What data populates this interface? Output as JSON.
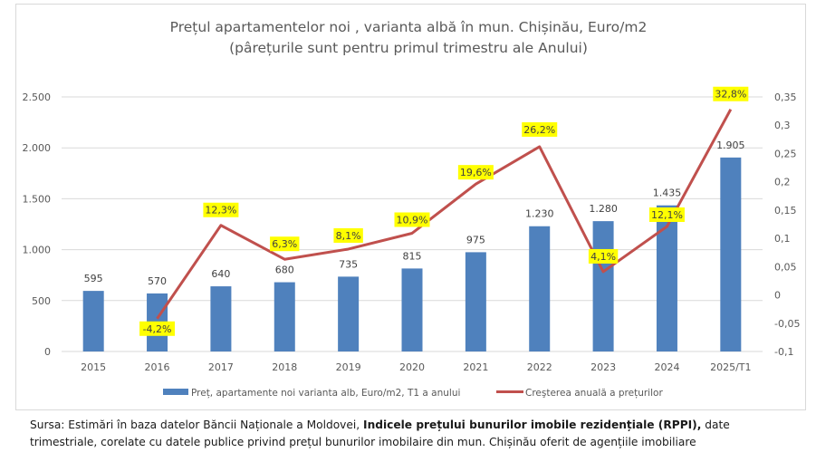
{
  "chart_data": {
    "type": "bar+line",
    "title": "Prețul apartamentelor noi , varianta albă în mun. Chișinău, Euro/m2",
    "subtitle": "(pârețurile sunt pentru primul trimestru ale Anului)",
    "categories": [
      "2015",
      "2016",
      "2017",
      "2018",
      "2019",
      "2020",
      "2021",
      "2022",
      "2023",
      "2024",
      "2025/T1"
    ],
    "series": [
      {
        "name": "Preț, apartamente noi varianta alb, Euro/m2, T1 a anului",
        "type": "bar",
        "axis": "left",
        "color": "#4f81bd",
        "values": [
          595,
          570,
          640,
          680,
          735,
          815,
          975,
          1230,
          1280,
          1435,
          1905
        ],
        "labels": [
          "595",
          "570",
          "640",
          "680",
          "735",
          "815",
          "975",
          "1.230",
          "1.280",
          "1.435",
          "1.905"
        ]
      },
      {
        "name": "Creşterea anuală a prețurilor",
        "type": "line",
        "axis": "right",
        "color": "#c0504d",
        "values": [
          null,
          -0.042,
          0.123,
          0.063,
          0.081,
          0.109,
          0.196,
          0.262,
          0.041,
          0.121,
          0.328
        ],
        "labels": [
          null,
          "-4,2%",
          "12,3%",
          "6,3%",
          "8,1%",
          "10,9%",
          "19,6%",
          "26,2%",
          "4,1%",
          "12,1%",
          "32,8%"
        ]
      }
    ],
    "y_left": {
      "ylim": [
        0,
        2500
      ],
      "ticks": [
        0,
        500,
        1000,
        1500,
        2000,
        2500
      ],
      "tick_labels": [
        "0",
        "500",
        "1.000",
        "1.500",
        "2.000",
        "2.500"
      ]
    },
    "y_right": {
      "ylim": [
        -0.1,
        0.35
      ],
      "ticks": [
        -0.1,
        -0.05,
        0,
        0.05,
        0.1,
        0.15,
        0.2,
        0.25,
        0.3,
        0.35
      ],
      "tick_labels": [
        "-0,1",
        "-0,05",
        "0",
        "0,05",
        "0,1",
        "0,15",
        "0,2",
        "0,25",
        "0,3",
        "0,35"
      ]
    },
    "grid": true,
    "legend_position": "bottom",
    "label_highlight_color": "#ffff00"
  },
  "source": {
    "prefix": "Sursa: Estimări în baza datelor Băncii Naționale a Moldovei, ",
    "bold": "Indicele prețului bunurilor  imobile rezidențiale (RPPI),",
    "suffix_line1": " date",
    "line2": "trimestriale, corelate cu datele publice privind prețul bunurilor imobilaire din mun. Chișinău oferit de agențiile imobiliare"
  }
}
